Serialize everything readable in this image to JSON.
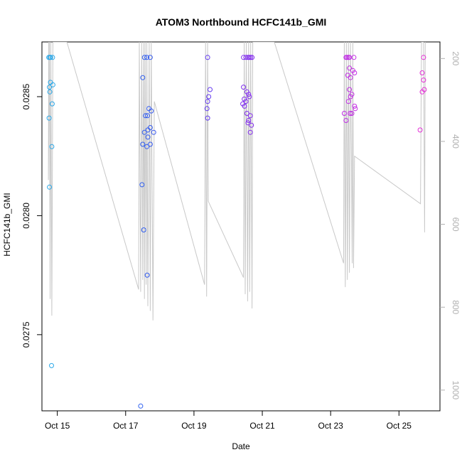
{
  "chart_data": {
    "type": "scatter",
    "title": "ATOM3 Northbound HCFC141b_GMI",
    "xlabel": "Date",
    "ylabel": "HCFC141b_GMI",
    "x_unit": "days since Oct 1",
    "xlim": [
      14.55,
      26.2
    ],
    "ylim": [
      0.02718,
      0.02873
    ],
    "x_ticks": [
      {
        "value": 15,
        "label": "Oct 15"
      },
      {
        "value": 17,
        "label": "Oct 17"
      },
      {
        "value": 19,
        "label": "Oct 19"
      },
      {
        "value": 21,
        "label": "Oct 21"
      },
      {
        "value": 23,
        "label": "Oct 23"
      },
      {
        "value": 25,
        "label": "Oct 25"
      }
    ],
    "y_ticks": [
      {
        "value": 0.0275,
        "label": "0.0275"
      },
      {
        "value": 0.028,
        "label": "0.0280"
      },
      {
        "value": 0.0285,
        "label": "0.0285"
      }
    ],
    "y2_label": "",
    "y2_lim": [
      1050,
      160
    ],
    "y2_ticks": [
      {
        "value": 200,
        "label": "200"
      },
      {
        "value": 400,
        "label": "400"
      },
      {
        "value": 600,
        "label": "600"
      },
      {
        "value": 800,
        "label": "800"
      },
      {
        "value": 1000,
        "label": "1000"
      }
    ],
    "color_gradient": [
      "#29a9e8",
      "#2f5ff0",
      "#7a2bf0",
      "#b82be8",
      "#e62fd6"
    ],
    "line_color": "#c8c8c8",
    "points": [
      [
        14.75,
        0.028665
      ],
      [
        14.78,
        0.028665
      ],
      [
        14.8,
        0.028665
      ],
      [
        14.86,
        0.028665
      ],
      [
        14.8,
        0.02856
      ],
      [
        14.87,
        0.02855
      ],
      [
        14.77,
        0.02854
      ],
      [
        14.78,
        0.02852
      ],
      [
        14.85,
        0.02847
      ],
      [
        14.76,
        0.02841
      ],
      [
        14.84,
        0.02829
      ],
      [
        14.77,
        0.02812
      ],
      [
        14.83,
        0.02737
      ],
      [
        17.55,
        0.028665
      ],
      [
        17.62,
        0.028665
      ],
      [
        17.72,
        0.028665
      ],
      [
        17.5,
        0.02858
      ],
      [
        17.68,
        0.02845
      ],
      [
        17.75,
        0.02844
      ],
      [
        17.58,
        0.02842
      ],
      [
        17.64,
        0.02842
      ],
      [
        17.72,
        0.02837
      ],
      [
        17.55,
        0.02835
      ],
      [
        17.65,
        0.02836
      ],
      [
        17.82,
        0.02835
      ],
      [
        17.65,
        0.02833
      ],
      [
        17.5,
        0.0283
      ],
      [
        17.62,
        0.02829
      ],
      [
        17.72,
        0.0283
      ],
      [
        17.48,
        0.02813
      ],
      [
        17.53,
        0.02794
      ],
      [
        17.63,
        0.02775
      ],
      [
        17.44,
        0.0272
      ],
      [
        19.4,
        0.028665
      ],
      [
        19.47,
        0.02853
      ],
      [
        19.43,
        0.0285
      ],
      [
        19.4,
        0.02848
      ],
      [
        19.38,
        0.02845
      ],
      [
        19.4,
        0.02841
      ],
      [
        20.45,
        0.028665
      ],
      [
        20.52,
        0.028665
      ],
      [
        20.58,
        0.028665
      ],
      [
        20.62,
        0.028665
      ],
      [
        20.66,
        0.028665
      ],
      [
        20.7,
        0.028665
      ],
      [
        20.45,
        0.02854
      ],
      [
        20.55,
        0.02852
      ],
      [
        20.6,
        0.02851
      ],
      [
        20.47,
        0.02849
      ],
      [
        20.62,
        0.0285
      ],
      [
        20.52,
        0.02848
      ],
      [
        20.43,
        0.02847
      ],
      [
        20.48,
        0.02846
      ],
      [
        20.55,
        0.02843
      ],
      [
        20.65,
        0.02842
      ],
      [
        20.6,
        0.0284
      ],
      [
        20.58,
        0.02839
      ],
      [
        20.68,
        0.02838
      ],
      [
        20.65,
        0.02835
      ],
      [
        23.45,
        0.028665
      ],
      [
        23.48,
        0.028665
      ],
      [
        23.52,
        0.028665
      ],
      [
        23.55,
        0.028665
      ],
      [
        23.68,
        0.028665
      ],
      [
        23.55,
        0.02862
      ],
      [
        23.65,
        0.02861
      ],
      [
        23.5,
        0.02859
      ],
      [
        23.7,
        0.0286
      ],
      [
        23.58,
        0.02858
      ],
      [
        23.55,
        0.02853
      ],
      [
        23.62,
        0.02851
      ],
      [
        23.58,
        0.0285
      ],
      [
        23.52,
        0.02848
      ],
      [
        23.7,
        0.02846
      ],
      [
        23.72,
        0.02845
      ],
      [
        23.4,
        0.02843
      ],
      [
        23.62,
        0.02843
      ],
      [
        23.57,
        0.02843
      ],
      [
        23.45,
        0.0284
      ],
      [
        25.72,
        0.028665
      ],
      [
        25.68,
        0.0286
      ],
      [
        25.72,
        0.02857
      ],
      [
        25.74,
        0.02853
      ],
      [
        25.68,
        0.02852
      ],
      [
        25.62,
        0.02836
      ]
    ],
    "line_path": [
      [
        14.75,
        0.02873
      ],
      [
        14.74,
        0.02815
      ],
      [
        14.77,
        0.02873
      ],
      [
        14.79,
        0.02765
      ],
      [
        14.81,
        0.02873
      ],
      [
        14.84,
        0.02758
      ],
      [
        14.87,
        0.02873
      ],
      [
        15.28,
        0.02873
      ],
      [
        17.38,
        0.02769
      ],
      [
        17.4,
        0.02873
      ],
      [
        17.44,
        0.02768
      ],
      [
        17.47,
        0.02873
      ],
      [
        17.5,
        0.02773
      ],
      [
        17.53,
        0.02873
      ],
      [
        17.55,
        0.02765
      ],
      [
        17.57,
        0.02873
      ],
      [
        17.6,
        0.02771
      ],
      [
        17.62,
        0.02873
      ],
      [
        17.65,
        0.02762
      ],
      [
        17.69,
        0.02873
      ],
      [
        17.72,
        0.0276
      ],
      [
        17.75,
        0.02873
      ],
      [
        17.8,
        0.02756
      ],
      [
        17.84,
        0.02848
      ],
      [
        19.31,
        0.02771
      ],
      [
        19.34,
        0.02873
      ],
      [
        19.37,
        0.02766
      ],
      [
        19.4,
        0.02873
      ],
      [
        19.42,
        0.02806
      ],
      [
        20.45,
        0.02774
      ],
      [
        20.47,
        0.02873
      ],
      [
        20.5,
        0.02767
      ],
      [
        20.53,
        0.02873
      ],
      [
        20.57,
        0.02764
      ],
      [
        20.6,
        0.02873
      ],
      [
        20.63,
        0.02768
      ],
      [
        20.66,
        0.02873
      ],
      [
        20.7,
        0.02761
      ],
      [
        20.72,
        0.02873
      ],
      [
        21.35,
        0.02873
      ],
      [
        23.38,
        0.0278
      ],
      [
        23.4,
        0.02873
      ],
      [
        23.43,
        0.0277
      ],
      [
        23.46,
        0.02873
      ],
      [
        23.49,
        0.02773
      ],
      [
        23.52,
        0.02873
      ],
      [
        23.55,
        0.02776
      ],
      [
        23.58,
        0.02873
      ],
      [
        23.61,
        0.02822
      ],
      [
        23.63,
        0.0278
      ],
      [
        23.65,
        0.02873
      ],
      [
        23.67,
        0.02778
      ],
      [
        23.7,
        0.02825
      ],
      [
        25.63,
        0.02805
      ],
      [
        25.66,
        0.02873
      ],
      [
        25.72,
        0.02873
      ],
      [
        25.75,
        0.02793
      ],
      [
        25.77,
        0.02873
      ]
    ]
  }
}
